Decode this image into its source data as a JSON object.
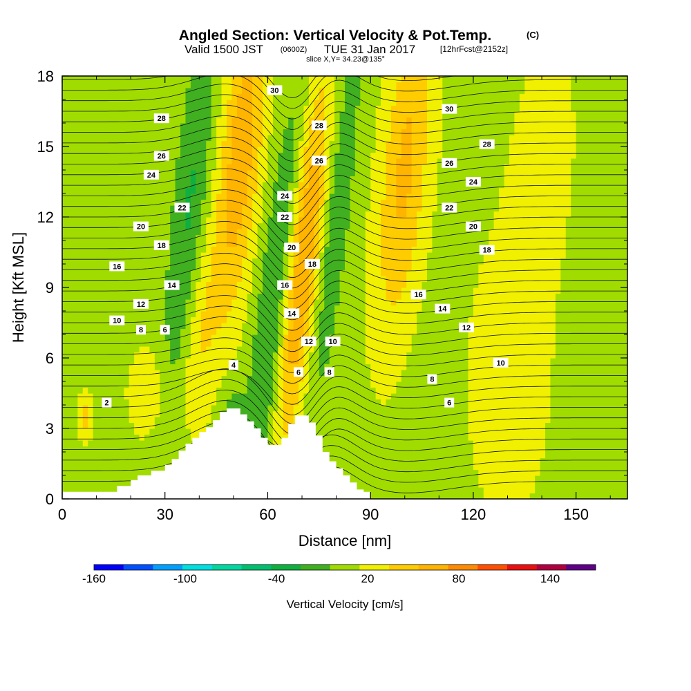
{
  "header": {
    "title": "Angled Section: Vertical Velocity & Pot.Temp.",
    "title_tag": "(C)",
    "valid_line": "Valid 1500 JST",
    "valid_z": "(0600Z)",
    "valid_date": "TUE 31 Jan 2017",
    "forecast": "[12hrFcst@2152z]",
    "slice": "slice X,Y= 34.23@135°"
  },
  "chart_data": {
    "type": "heatmap",
    "title": "Angled Section: Vertical Velocity & Pot.Temp.",
    "xlabel": "Distance [nm]",
    "ylabel": "Height [Kft MSL]",
    "xlim": [
      0,
      165
    ],
    "ylim": [
      0,
      18
    ],
    "x_ticks": [
      "0",
      "30",
      "60",
      "90",
      "120",
      "150"
    ],
    "y_ticks": [
      "0",
      "3",
      "6",
      "9",
      "12",
      "15",
      "18"
    ],
    "grid": false,
    "fill_variable": "Vertical Velocity [cm/s]",
    "contour_variable": "Potential temperature (C)",
    "colorbar": {
      "label": "Vertical Velocity [cm/s]",
      "tick_labels": [
        "-160",
        "-100",
        "-40",
        "20",
        "80",
        "140"
      ],
      "tick_values": [
        -160,
        -100,
        -40,
        20,
        80,
        140
      ],
      "range": [
        -160,
        170
      ],
      "bins": 17,
      "colors": [
        "#0000ff",
        "#0050ff",
        "#00a0ff",
        "#00e0e0",
        "#00d8a0",
        "#00c070",
        "#10b040",
        "#40b020",
        "#a0dc00",
        "#f0f000",
        "#ffcc00",
        "#ffb400",
        "#ff8c00",
        "#ff5000",
        "#e81010",
        "#b00040",
        "#600088"
      ]
    },
    "terrain": [
      [
        10,
        0.3
      ],
      [
        16,
        0.55
      ],
      [
        18,
        0.55
      ],
      [
        20,
        0.8
      ],
      [
        22,
        1.0
      ],
      [
        26,
        1.2
      ],
      [
        30,
        1.45
      ],
      [
        32,
        1.7
      ],
      [
        34,
        2.05
      ],
      [
        36,
        2.35
      ],
      [
        38,
        2.6
      ],
      [
        40,
        2.85
      ],
      [
        42,
        3.05
      ],
      [
        44,
        3.35
      ],
      [
        46,
        3.7
      ],
      [
        48,
        3.85
      ],
      [
        50,
        3.85
      ],
      [
        52,
        3.6
      ],
      [
        54,
        3.3
      ],
      [
        56,
        3.0
      ],
      [
        58,
        2.6
      ],
      [
        60,
        2.3
      ],
      [
        62,
        2.3
      ],
      [
        64,
        2.6
      ],
      [
        66,
        3.2
      ],
      [
        68,
        3.55
      ],
      [
        70,
        3.55
      ],
      [
        72,
        3.25
      ],
      [
        74,
        2.7
      ],
      [
        76,
        2.0
      ],
      [
        78,
        1.6
      ],
      [
        80,
        1.3
      ],
      [
        82,
        1.0
      ],
      [
        84,
        0.7
      ],
      [
        86,
        0.4
      ],
      [
        88,
        0.3
      ],
      [
        90,
        0.0
      ]
    ],
    "velocity_features": [
      {
        "x": 52,
        "z": 14.5,
        "w": 6,
        "h": 7,
        "value": 60,
        "tilt": 0.25
      },
      {
        "x": 70,
        "z": 10,
        "w": 5,
        "h": 8,
        "value": 70,
        "tilt": 0.3
      },
      {
        "x": 100,
        "z": 14,
        "w": 7,
        "h": 7,
        "value": 50,
        "tilt": 0.25
      },
      {
        "x": 62,
        "z": 8,
        "w": 5,
        "h": 9,
        "value": -40,
        "tilt": 0.3
      },
      {
        "x": 37,
        "z": 12,
        "w": 5,
        "h": 8,
        "value": -35,
        "tilt": 0.25
      },
      {
        "x": 80,
        "z": 12,
        "w": 4,
        "h": 8,
        "value": -30,
        "tilt": 0.3
      },
      {
        "x": 50,
        "z": 2.5,
        "w": 4,
        "h": 2,
        "value": -40,
        "tilt": 0
      },
      {
        "x": 7,
        "z": 3.5,
        "w": 2,
        "h": 1,
        "value": 35,
        "tilt": 0
      },
      {
        "x": 40,
        "z": 7,
        "w": 5,
        "h": 4,
        "value": 25,
        "tilt": 0.2
      },
      {
        "x": 25,
        "z": 4.5,
        "w": 6,
        "h": 2,
        "value": 20,
        "tilt": 0
      },
      {
        "x": 130,
        "z": 5,
        "w": 12,
        "h": 6,
        "value": 18,
        "tilt": 0
      },
      {
        "x": 140,
        "z": 14,
        "w": 10,
        "h": 6,
        "value": 15,
        "tilt": 0.2
      }
    ],
    "contour_labels": [
      {
        "text": "30",
        "x": 62,
        "z": 17.4
      },
      {
        "text": "30",
        "x": 113,
        "z": 16.6
      },
      {
        "text": "28",
        "x": 29,
        "z": 16.2
      },
      {
        "text": "28",
        "x": 75,
        "z": 15.9
      },
      {
        "text": "28",
        "x": 124,
        "z": 15.1
      },
      {
        "text": "26",
        "x": 29,
        "z": 14.6
      },
      {
        "text": "26",
        "x": 75,
        "z": 14.4
      },
      {
        "text": "26",
        "x": 113,
        "z": 14.3
      },
      {
        "text": "24",
        "x": 26,
        "z": 13.8
      },
      {
        "text": "24",
        "x": 65,
        "z": 12.9
      },
      {
        "text": "24",
        "x": 120,
        "z": 13.5
      },
      {
        "text": "22",
        "x": 35,
        "z": 12.4
      },
      {
        "text": "22",
        "x": 65,
        "z": 12.0
      },
      {
        "text": "22",
        "x": 113,
        "z": 12.4
      },
      {
        "text": "20",
        "x": 23,
        "z": 11.6
      },
      {
        "text": "20",
        "x": 67,
        "z": 10.7
      },
      {
        "text": "20",
        "x": 120,
        "z": 11.6
      },
      {
        "text": "18",
        "x": 29,
        "z": 10.8
      },
      {
        "text": "18",
        "x": 73,
        "z": 10.0
      },
      {
        "text": "18",
        "x": 124,
        "z": 10.6
      },
      {
        "text": "16",
        "x": 16,
        "z": 9.9
      },
      {
        "text": "16",
        "x": 65,
        "z": 9.1
      },
      {
        "text": "16",
        "x": 104,
        "z": 8.7
      },
      {
        "text": "14",
        "x": 32,
        "z": 9.1
      },
      {
        "text": "14",
        "x": 67,
        "z": 7.9
      },
      {
        "text": "14",
        "x": 111,
        "z": 8.1
      },
      {
        "text": "12",
        "x": 23,
        "z": 8.3
      },
      {
        "text": "12",
        "x": 72,
        "z": 6.7
      },
      {
        "text": "12",
        "x": 118,
        "z": 7.3
      },
      {
        "text": "10",
        "x": 16,
        "z": 7.6
      },
      {
        "text": "10",
        "x": 79,
        "z": 6.7
      },
      {
        "text": "10",
        "x": 128,
        "z": 5.8
      },
      {
        "text": "8",
        "x": 23,
        "z": 7.2
      },
      {
        "text": "8",
        "x": 78,
        "z": 5.4
      },
      {
        "text": "8",
        "x": 108,
        "z": 5.1
      },
      {
        "text": "6",
        "x": 30,
        "z": 7.2
      },
      {
        "text": "6",
        "x": 69,
        "z": 5.4
      },
      {
        "text": "6",
        "x": 113,
        "z": 4.1
      },
      {
        "text": "4",
        "x": 50,
        "z": 5.7
      },
      {
        "text": "2",
        "x": 13,
        "z": 4.1
      }
    ]
  }
}
